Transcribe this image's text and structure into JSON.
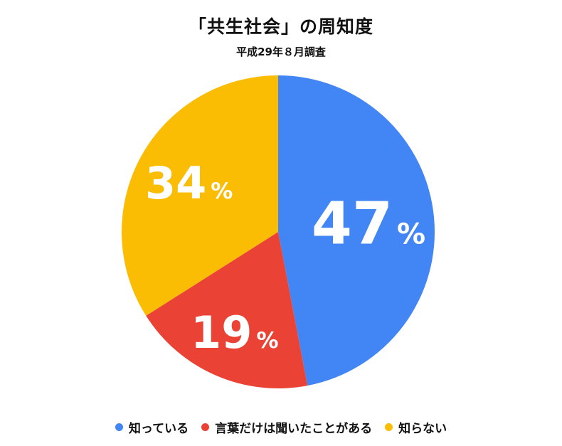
{
  "chart_data": {
    "type": "pie",
    "title": "「共生社会」の周知度",
    "subtitle": "平成29年８月調査",
    "slices": [
      {
        "name": "知っている",
        "value": 47,
        "label": "47",
        "unit": "%",
        "color": "#4285F4"
      },
      {
        "name": "言葉だけは聞いたことがある",
        "value": 19,
        "label": "19",
        "unit": "%",
        "color": "#EA4335"
      },
      {
        "name": "知らない",
        "value": 34,
        "label": "34",
        "unit": "%",
        "color": "#FBBC04"
      }
    ],
    "legend_position": "bottom"
  }
}
